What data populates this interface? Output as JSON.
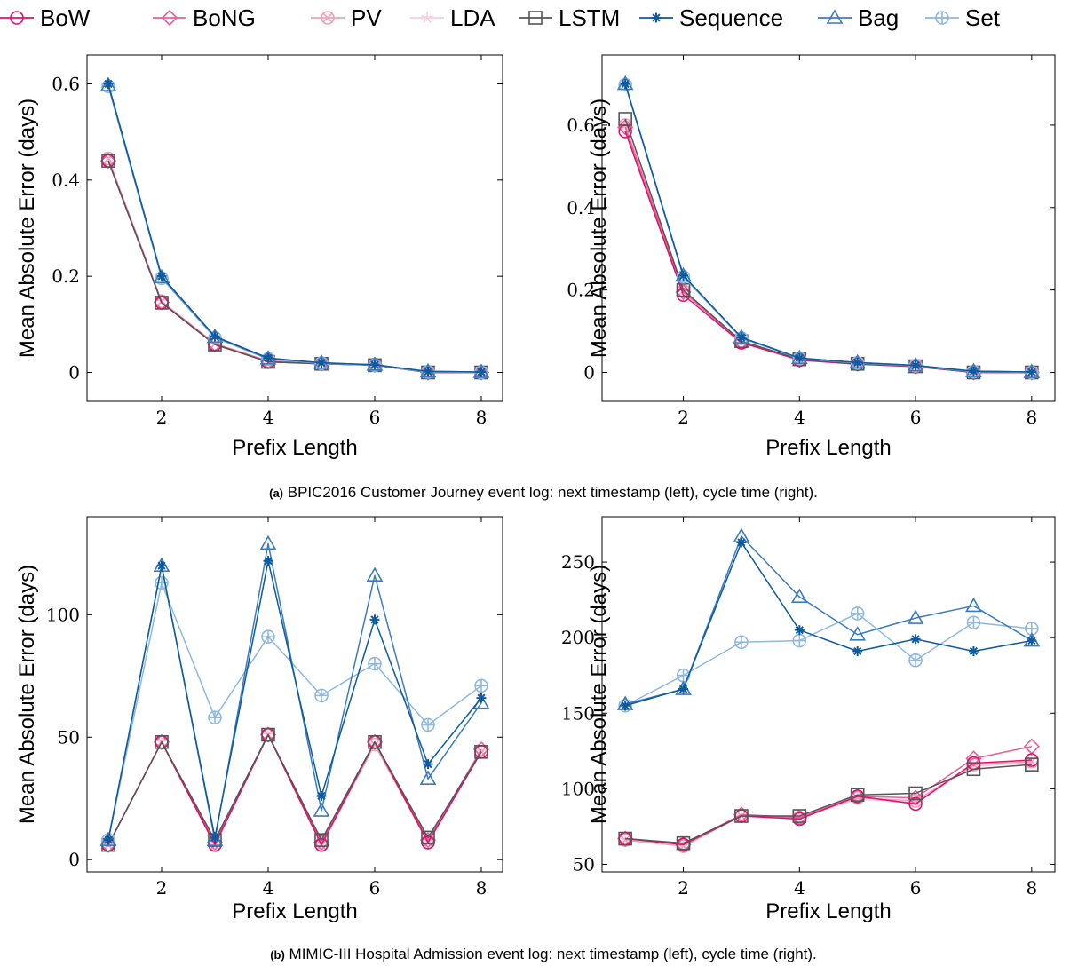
{
  "legend": [
    {
      "name": "BoW",
      "color": "#e0116e",
      "marker": "circle"
    },
    {
      "name": "BoNG",
      "color": "#e6609b",
      "marker": "diamond"
    },
    {
      "name": "PV",
      "color": "#f0a0b8",
      "marker": "otimes"
    },
    {
      "name": "LDA",
      "color": "#f7cde0",
      "marker": "star"
    },
    {
      "name": "LSTM",
      "color": "#555555",
      "marker": "square"
    },
    {
      "name": "Sequence",
      "color": "#0d5a9e",
      "marker": "asterisk"
    },
    {
      "name": "Bag",
      "color": "#3a7bbf",
      "marker": "triangle"
    },
    {
      "name": "Set",
      "color": "#8fb8e0",
      "marker": "oplus"
    }
  ],
  "captions": [
    {
      "label": "(a)",
      "text": "BPIC2016 Customer Journey event log: next timestamp (left), cycle time (right)."
    },
    {
      "label": "(b)",
      "text": "MIMIC-III Hospital Admission event log: next timestamp (left), cycle time (right)."
    }
  ],
  "chart_data": [
    {
      "type": "line",
      "xlabel": "Prefix Length",
      "ylabel": "Mean Absolute Error (days)",
      "xlim": [
        0.6,
        8.4
      ],
      "ylim": [
        -0.06,
        0.66
      ],
      "xticks": [
        2,
        4,
        6,
        8
      ],
      "xtick_labels": [
        "2",
        "4",
        "6",
        "8"
      ],
      "yticks": [
        0,
        0.2,
        0.4,
        0.6
      ],
      "ytick_labels": [
        "0",
        "0.2",
        "0.4",
        "0.6"
      ],
      "x": [
        1,
        2,
        3,
        4,
        5,
        6,
        7,
        8
      ],
      "series": [
        {
          "name": "BoW",
          "values": [
            0.44,
            0.145,
            0.058,
            0.022,
            0.018,
            0.015,
            0,
            0
          ]
        },
        {
          "name": "BoNG",
          "values": [
            0.44,
            0.146,
            0.059,
            0.023,
            0.019,
            0.016,
            0,
            0
          ]
        },
        {
          "name": "PV",
          "values": [
            0.445,
            0.148,
            0.06,
            0.024,
            0.019,
            0.016,
            0,
            0
          ]
        },
        {
          "name": "LDA",
          "values": [
            0.445,
            0.148,
            0.06,
            0.024,
            0.019,
            0.016,
            0,
            0
          ]
        },
        {
          "name": "LSTM",
          "values": [
            0.44,
            0.145,
            0.058,
            0.022,
            0.018,
            0.015,
            0,
            0
          ]
        },
        {
          "name": "Sequence",
          "values": [
            0.6,
            0.2,
            0.075,
            0.03,
            0.02,
            0.016,
            0.002,
            0.001
          ]
        },
        {
          "name": "Bag",
          "values": [
            0.597,
            0.198,
            0.074,
            0.029,
            0.02,
            0.016,
            0.002,
            0.001
          ]
        },
        {
          "name": "Set",
          "values": [
            0.595,
            0.196,
            0.072,
            0.028,
            0.019,
            0.015,
            0.001,
            0
          ]
        }
      ]
    },
    {
      "type": "line",
      "xlabel": "Prefix Length",
      "ylabel": "Mean Absolute Error (days)",
      "xlim": [
        0.6,
        8.4
      ],
      "ylim": [
        -0.07,
        0.77
      ],
      "xticks": [
        2,
        4,
        6,
        8
      ],
      "xtick_labels": [
        "2",
        "4",
        "6",
        "8"
      ],
      "yticks": [
        0,
        0.2,
        0.4,
        0.6
      ],
      "ytick_labels": [
        "0",
        "0.2",
        "0.4",
        "0.6"
      ],
      "x": [
        1,
        2,
        3,
        4,
        5,
        6,
        7,
        8
      ],
      "series": [
        {
          "name": "BoW",
          "values": [
            0.585,
            0.188,
            0.072,
            0.03,
            0.02,
            0.014,
            0,
            0
          ]
        },
        {
          "name": "BoNG",
          "values": [
            0.595,
            0.195,
            0.074,
            0.031,
            0.021,
            0.015,
            0,
            0
          ]
        },
        {
          "name": "PV",
          "values": [
            0.6,
            0.198,
            0.075,
            0.031,
            0.021,
            0.015,
            0,
            0
          ]
        },
        {
          "name": "LDA",
          "values": [
            0.6,
            0.198,
            0.075,
            0.031,
            0.021,
            0.015,
            0,
            0
          ]
        },
        {
          "name": "LSTM",
          "values": [
            0.615,
            0.2,
            0.076,
            0.032,
            0.021,
            0.015,
            0,
            0
          ]
        },
        {
          "name": "Sequence",
          "values": [
            0.7,
            0.235,
            0.085,
            0.035,
            0.024,
            0.017,
            0.003,
            0.001
          ]
        },
        {
          "name": "Bag",
          "values": [
            0.7,
            0.235,
            0.085,
            0.035,
            0.024,
            0.017,
            0.003,
            0.001
          ]
        },
        {
          "name": "Set",
          "values": [
            0.698,
            0.232,
            0.083,
            0.034,
            0.023,
            0.016,
            0.002,
            0
          ]
        }
      ]
    },
    {
      "type": "line",
      "xlabel": "Prefix Length",
      "ylabel": "Mean Absolute Error (days)",
      "xlim": [
        0.6,
        8.4
      ],
      "ylim": [
        -5,
        140
      ],
      "xticks": [
        2,
        4,
        6,
        8
      ],
      "xtick_labels": [
        "2",
        "4",
        "6",
        "8"
      ],
      "yticks": [
        0,
        50,
        100
      ],
      "ytick_labels": [
        "0",
        "50",
        "100"
      ],
      "x": [
        1,
        2,
        3,
        4,
        5,
        6,
        7,
        8
      ],
      "series": [
        {
          "name": "BoW",
          "values": [
            6,
            48,
            6,
            51,
            6,
            48,
            7,
            44
          ]
        },
        {
          "name": "BoNG",
          "values": [
            6,
            48,
            7,
            51,
            7,
            48,
            8,
            45
          ]
        },
        {
          "name": "PV",
          "values": [
            6,
            48,
            6,
            51,
            6,
            47,
            7,
            44
          ]
        },
        {
          "name": "LDA",
          "values": [
            6,
            48,
            6,
            51,
            6,
            47,
            7,
            44
          ]
        },
        {
          "name": "LSTM",
          "values": [
            6,
            48,
            8,
            51,
            8,
            48,
            9,
            44
          ]
        },
        {
          "name": "Sequence",
          "values": [
            8,
            120,
            9,
            122,
            26,
            98,
            39,
            66
          ]
        },
        {
          "name": "Bag",
          "values": [
            8,
            120,
            8,
            129,
            20,
            116,
            33,
            64
          ]
        },
        {
          "name": "Set",
          "values": [
            8,
            113,
            58,
            91,
            67,
            80,
            55,
            71
          ]
        }
      ]
    },
    {
      "type": "line",
      "xlabel": "Prefix Length",
      "ylabel": "Mean Absolute Error (days)",
      "xlim": [
        0.6,
        8.4
      ],
      "ylim": [
        45,
        280
      ],
      "xticks": [
        2,
        4,
        6,
        8
      ],
      "xtick_labels": [
        "2",
        "4",
        "6",
        "8"
      ],
      "yticks": [
        50,
        100,
        150,
        200,
        250
      ],
      "ytick_labels": [
        "50",
        "100",
        "150",
        "200",
        "250"
      ],
      "x": [
        1,
        2,
        3,
        4,
        5,
        6,
        7,
        8
      ],
      "series": [
        {
          "name": "BoW",
          "values": [
            67,
            63,
            82,
            80,
            95,
            90,
            117,
            119
          ]
        },
        {
          "name": "BoNG",
          "values": [
            67,
            63,
            83,
            81,
            95,
            94,
            120,
            128
          ]
        },
        {
          "name": "PV",
          "values": [
            66,
            62,
            82,
            81,
            94,
            92,
            116,
            118
          ]
        },
        {
          "name": "LDA",
          "values": [
            66,
            62,
            82,
            81,
            93,
            91,
            115,
            117
          ]
        },
        {
          "name": "LSTM",
          "values": [
            67,
            64,
            82,
            82,
            96,
            97,
            113,
            116
          ]
        },
        {
          "name": "Sequence",
          "values": [
            155,
            166,
            263,
            205,
            191,
            199,
            191,
            198
          ]
        },
        {
          "name": "Bag",
          "values": [
            156,
            166,
            267,
            227,
            202,
            213,
            221,
            198
          ]
        },
        {
          "name": "Set",
          "values": [
            155,
            175,
            197,
            198,
            216,
            185,
            210,
            206
          ]
        }
      ]
    }
  ]
}
